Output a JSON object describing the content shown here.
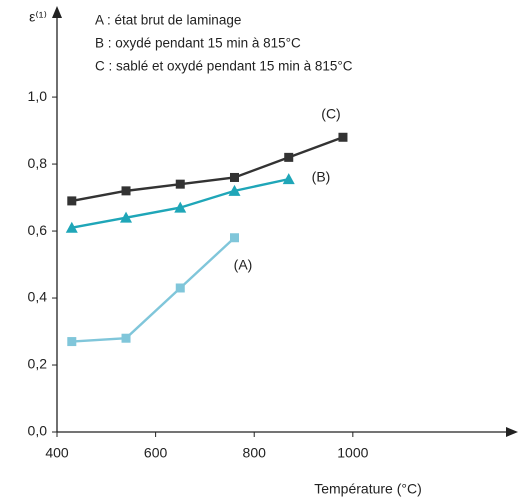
{
  "chart_data": {
    "type": "line",
    "y_label": "ε⁽¹⁾",
    "x_label": "Température (°C)",
    "legend_texts": [
      "A : état brut de laminage",
      "B : oxydé pendant 15 min à 815°C",
      "C : sablé et oxydé pendant 15 min à 815°C"
    ],
    "annotations": [
      "(C)",
      "(B)",
      "(A)"
    ],
    "xlim": [
      400,
      1335
    ],
    "xticks": [
      400,
      600,
      800,
      1000
    ],
    "ylim": [
      0,
      1.26
    ],
    "yticks": [
      {
        "value": 0,
        "label": "0,0"
      },
      {
        "value": 0.2,
        "label": "0,2"
      },
      {
        "value": 0.4,
        "label": "0,4"
      },
      {
        "value": 0.6,
        "label": "0,6"
      },
      {
        "value": 0.8,
        "label": "0,8"
      },
      {
        "value": 1.0,
        "label": "1,0"
      }
    ],
    "series": [
      {
        "name": "A",
        "color": "#80c6da",
        "marker": "square",
        "x": [
          430,
          540,
          650,
          760
        ],
        "values": [
          0.27,
          0.28,
          0.43,
          0.58
        ]
      },
      {
        "name": "B",
        "color": "#1fa6b8",
        "marker": "triangle",
        "x": [
          430,
          540,
          650,
          760,
          870
        ],
        "values": [
          0.61,
          0.64,
          0.67,
          0.72,
          0.755
        ]
      },
      {
        "name": "C",
        "color": "#333333",
        "marker": "square",
        "x": [
          430,
          540,
          650,
          760,
          870,
          980
        ],
        "values": [
          0.69,
          0.72,
          0.74,
          0.76,
          0.82,
          0.88
        ]
      }
    ]
  }
}
